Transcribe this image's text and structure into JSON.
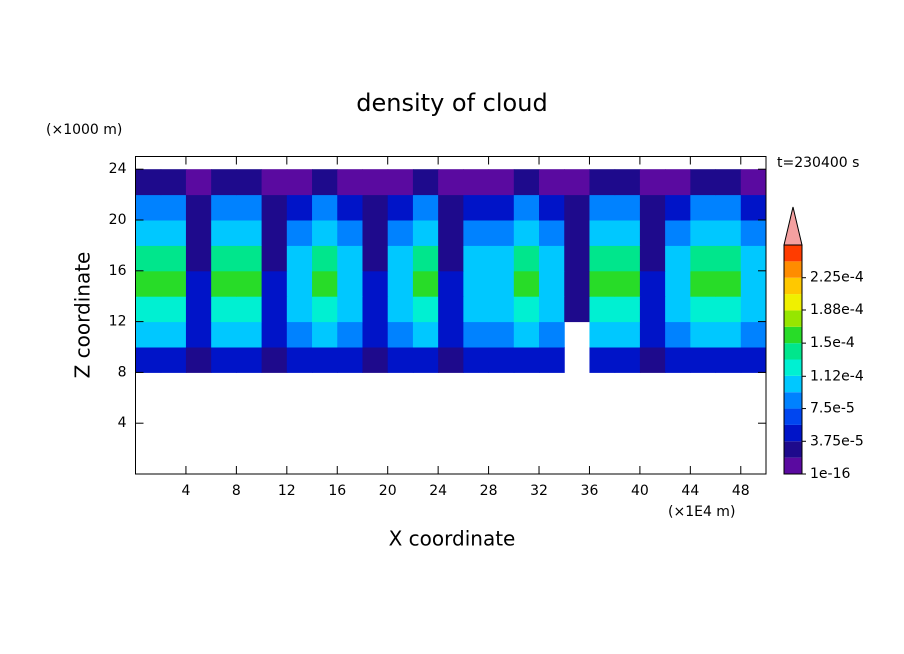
{
  "chart_data": {
    "type": "heatmap",
    "title": "density of cloud",
    "x_label": "X coordinate",
    "y_label": "Z coordinate",
    "x_unit": "(×1E4 m)",
    "y_unit": "(×1000 m)",
    "annotation": "t=230400 s",
    "xlim": [
      0,
      50
    ],
    "ylim": [
      0,
      25
    ],
    "xticks": [
      4,
      8,
      12,
      16,
      20,
      24,
      28,
      32,
      36,
      40,
      44,
      48
    ],
    "yticks": [
      4,
      8,
      12,
      16,
      20,
      24
    ],
    "x": [
      1,
      3,
      5,
      7,
      9,
      11,
      13,
      15,
      17,
      19,
      21,
      23,
      25,
      27,
      29,
      31,
      33,
      35,
      37,
      39,
      41,
      43,
      45,
      47,
      49
    ],
    "y": [
      9,
      11,
      13,
      15,
      17,
      19,
      21,
      23
    ],
    "values": [
      [
        5e-05,
        5e-05,
        3e-05,
        5e-05,
        5e-05,
        3e-05,
        4e-05,
        5e-05,
        4e-05,
        3e-05,
        4e-05,
        5e-05,
        3e-05,
        4e-05,
        4e-05,
        5e-05,
        4e-05,
        null,
        5e-05,
        5e-05,
        3e-05,
        4e-05,
        5e-05,
        5e-05,
        4e-05
      ],
      [
        0.0001,
        0.0001,
        4e-05,
        0.0001,
        0.0001,
        4e-05,
        8e-05,
        0.0001,
        8e-05,
        4e-05,
        8e-05,
        0.0001,
        4e-05,
        8e-05,
        8e-05,
        0.0001,
        8e-05,
        null,
        0.0001,
        0.0001,
        4e-05,
        8e-05,
        0.0001,
        0.0001,
        8e-05
      ],
      [
        0.00013,
        0.00013,
        5e-05,
        0.00013,
        0.00013,
        5e-05,
        0.0001,
        0.00013,
        0.0001,
        5e-05,
        0.0001,
        0.00013,
        5e-05,
        0.0001,
        0.0001,
        0.00013,
        0.0001,
        2e-05,
        0.00013,
        0.00013,
        5e-05,
        0.0001,
        0.00013,
        0.00013,
        0.0001
      ],
      [
        0.00015,
        0.00015,
        4e-05,
        0.00015,
        0.00015,
        4e-05,
        0.00011,
        0.00015,
        0.00011,
        4e-05,
        0.00011,
        0.00015,
        4e-05,
        0.00011,
        0.00011,
        0.00015,
        0.00011,
        3e-05,
        0.00015,
        0.00015,
        4e-05,
        0.00011,
        0.00015,
        0.00015,
        0.00011
      ],
      [
        0.00014,
        0.00014,
        3e-05,
        0.00014,
        0.00014,
        3e-05,
        0.0001,
        0.00014,
        0.0001,
        3e-05,
        0.0001,
        0.00014,
        3e-05,
        0.0001,
        0.0001,
        0.00014,
        0.0001,
        3e-05,
        0.00014,
        0.00014,
        3e-05,
        0.0001,
        0.00014,
        0.00014,
        0.0001
      ],
      [
        0.00011,
        0.00011,
        3e-05,
        0.00011,
        0.00011,
        3e-05,
        8e-05,
        0.00011,
        8e-05,
        3e-05,
        8e-05,
        0.00011,
        3e-05,
        8e-05,
        8e-05,
        0.00011,
        8e-05,
        3e-05,
        0.00011,
        0.00011,
        3e-05,
        8e-05,
        0.00011,
        0.00011,
        8e-05
      ],
      [
        8e-05,
        8e-05,
        2e-05,
        8e-05,
        8e-05,
        2e-05,
        5e-05,
        8e-05,
        5e-05,
        2e-05,
        5e-05,
        8e-05,
        2e-05,
        5e-05,
        5e-05,
        8e-05,
        5e-05,
        2e-05,
        8e-05,
        8e-05,
        2e-05,
        5e-05,
        8e-05,
        8e-05,
        5e-05
      ],
      [
        2e-05,
        2e-05,
        1e-05,
        2e-05,
        2e-05,
        1e-05,
        1.5e-05,
        2e-05,
        1.5e-05,
        1e-05,
        1.5e-05,
        2e-05,
        1e-05,
        1.5e-05,
        1.5e-05,
        2e-05,
        1.5e-05,
        1e-05,
        2e-05,
        2e-05,
        1e-05,
        1.5e-05,
        2e-05,
        2e-05,
        1.5e-05
      ]
    ],
    "levels": [
      1e-16,
      1.875e-05,
      3.75e-05,
      5.625e-05,
      7.5e-05,
      9.375e-05,
      0.0001125,
      0.00013125,
      0.00015,
      0.00016875,
      0.0001875,
      0.00020625,
      0.000225,
      0.00024375,
      0.0002625
    ],
    "colors": [
      "#5a0aa0",
      "#1e0a8c",
      "#0014c8",
      "#0046f0",
      "#0082ff",
      "#00c8ff",
      "#00f0d2",
      "#00e68c",
      "#28dc28",
      "#96e600",
      "#f0f000",
      "#ffc800",
      "#ff8c00",
      "#ff3c00"
    ],
    "extend_color": "#f4a0a0",
    "colorbar_ticks": [
      {
        "value": 1e-16,
        "label": "1e-16"
      },
      {
        "value": 3.75e-05,
        "label": "3.75e-5"
      },
      {
        "value": 7.5e-05,
        "label": "7.5e-5"
      },
      {
        "value": 0.000112,
        "label": "1.12e-4"
      },
      {
        "value": 0.00015,
        "label": "1.5e-4"
      },
      {
        "value": 0.000188,
        "label": "1.88e-4"
      },
      {
        "value": 0.000225,
        "label": "2.25e-4"
      }
    ]
  }
}
